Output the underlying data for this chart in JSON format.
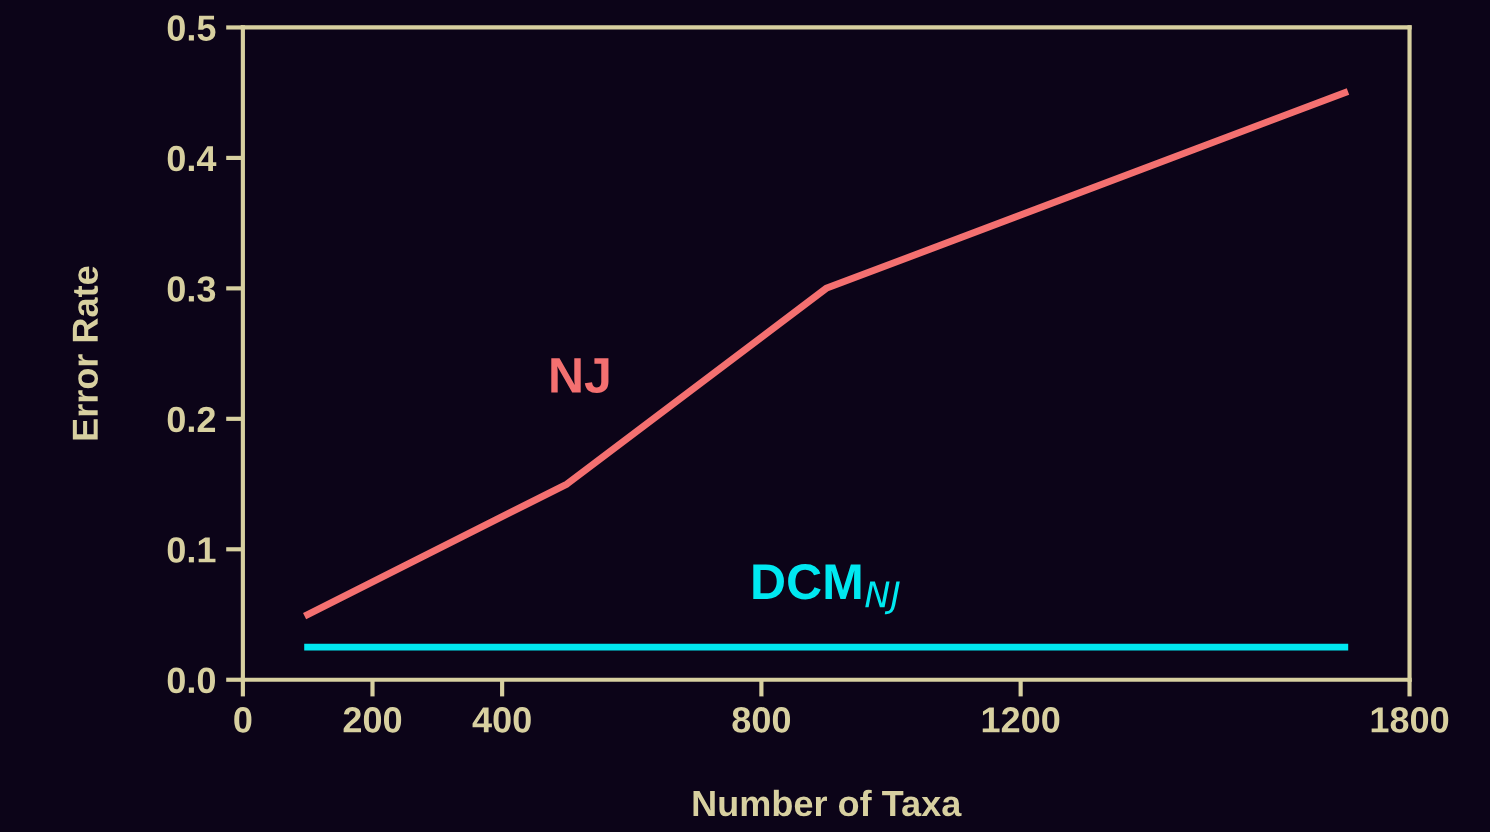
{
  "chart_data": {
    "type": "line",
    "xlabel": "Number of Taxa",
    "ylabel": "Error Rate",
    "xlim": [
      0,
      1800
    ],
    "xticks": [
      0,
      200,
      400,
      800,
      1200,
      1800
    ],
    "ylim": [
      0,
      0.5
    ],
    "yticks": [
      {
        "value": 0,
        "label": "0.0"
      },
      0.1,
      0.2,
      0.3,
      0.4,
      0.5
    ],
    "grid": false,
    "legend": false,
    "marker": "none",
    "line_style": "solid",
    "series": [
      {
        "name": "NJ",
        "color": "#f47070",
        "x": [
          100,
          500,
          900,
          1700
        ],
        "values": [
          0.05,
          0.15,
          0.3,
          0.45
        ]
      },
      {
        "name": "DCM$_{NJ}$",
        "color": "#00e8f0",
        "x": [
          100,
          1700
        ],
        "values": [
          0.025,
          0.025
        ]
      }
    ]
  }
}
